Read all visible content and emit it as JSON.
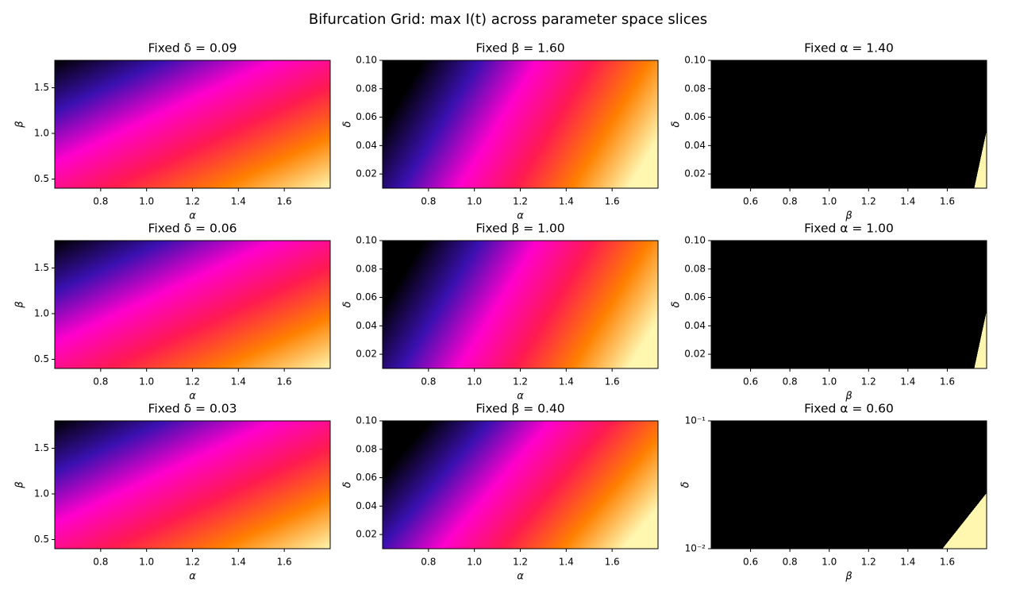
{
  "title": "Bifurcation Grid: max I(t) across parameter space slices",
  "chart_data": [
    {
      "type": "heatmap",
      "title": "Fixed δ = 0.09",
      "xlabel": "α",
      "ylabel": "β",
      "xlim": [
        0.6,
        1.8
      ],
      "ylim": [
        0.4,
        1.8
      ],
      "xticks": [
        0.8,
        {
          "value": 1,
          "label": "1.0"
        },
        1.2,
        1.4,
        1.6
      ],
      "yticks": [
        0.5,
        {
          "value": 1,
          "label": "1.0"
        },
        1.5
      ],
      "colors": [
        "#000000",
        "#3a10b0",
        "#ff00cc",
        "#ff1a50",
        "#ff8000",
        "#fff6b0"
      ]
    },
    {
      "type": "heatmap",
      "title": "Fixed β = 1.60",
      "xlabel": "α",
      "ylabel": "δ",
      "xlim": [
        0.6,
        1.8
      ],
      "ylim": [
        0.01,
        0.1
      ],
      "xticks": [
        0.8,
        {
          "value": 1,
          "label": "1.0"
        },
        1.2,
        1.4,
        1.6
      ],
      "yticks": [
        0.02,
        0.04,
        0.06,
        0.08,
        {
          "value": 0.1,
          "label": "0.10"
        }
      ],
      "colors": [
        "#000000",
        "#3a10b0",
        "#ff00cc",
        "#ff1a50",
        "#ff8000",
        "#fff6b0"
      ]
    },
    {
      "type": "heatmap",
      "title": "Fixed α = 1.40",
      "xlabel": "β",
      "ylabel": "δ",
      "xlim": [
        0.4,
        1.8
      ],
      "ylim": [
        0.01,
        0.1
      ],
      "xticks": [
        0.6,
        0.8,
        {
          "value": 1,
          "label": "1.0"
        },
        1.2,
        1.4,
        1.6
      ],
      "yticks": [
        0.02,
        0.04,
        0.06,
        0.08,
        {
          "value": 0.1,
          "label": "0.10"
        }
      ],
      "colors": [
        "#000000",
        "#3a10b0",
        "#ff00cc",
        "#ff1a50",
        "#ff8000",
        "#fff6b0"
      ]
    },
    {
      "type": "heatmap",
      "title": "Fixed δ = 0.06",
      "xlabel": "α",
      "ylabel": "β",
      "xlim": [
        0.6,
        1.8
      ],
      "ylim": [
        0.4,
        1.8
      ],
      "xticks": [
        0.8,
        {
          "value": 1,
          "label": "1.0"
        },
        1.2,
        1.4,
        1.6
      ],
      "yticks": [
        0.5,
        {
          "value": 1,
          "label": "1.0"
        },
        1.5
      ],
      "colors": [
        "#000000",
        "#3a10b0",
        "#ff00cc",
        "#ff1a50",
        "#ff8000",
        "#fff6b0"
      ]
    },
    {
      "type": "heatmap",
      "title": "Fixed β = 1.00",
      "xlabel": "α",
      "ylabel": "δ",
      "xlim": [
        0.6,
        1.8
      ],
      "ylim": [
        0.01,
        0.1
      ],
      "xticks": [
        0.8,
        {
          "value": 1,
          "label": "1.0"
        },
        1.2,
        1.4,
        1.6
      ],
      "yticks": [
        0.02,
        0.04,
        0.06,
        0.08,
        {
          "value": 0.1,
          "label": "0.10"
        }
      ],
      "colors": [
        "#000000",
        "#3a10b0",
        "#ff00cc",
        "#ff1a50",
        "#ff8000",
        "#fff6b0"
      ]
    },
    {
      "type": "heatmap",
      "title": "Fixed α = 1.00",
      "xlabel": "β",
      "ylabel": "δ",
      "xlim": [
        0.4,
        1.8
      ],
      "ylim": [
        0.01,
        0.1
      ],
      "xticks": [
        0.6,
        0.8,
        {
          "value": 1,
          "label": "1.0"
        },
        1.2,
        1.4,
        1.6
      ],
      "yticks": [
        0.02,
        0.04,
        0.06,
        0.08,
        {
          "value": 0.1,
          "label": "0.10"
        }
      ],
      "colors": [
        "#000000",
        "#3a10b0",
        "#ff00cc",
        "#ff1a50",
        "#ff8000",
        "#fff6b0"
      ]
    },
    {
      "type": "heatmap",
      "title": "Fixed δ = 0.03",
      "xlabel": "α",
      "ylabel": "β",
      "xlim": [
        0.6,
        1.8
      ],
      "ylim": [
        0.4,
        1.8
      ],
      "xticks": [
        0.8,
        {
          "value": 1,
          "label": "1.0"
        },
        1.2,
        1.4,
        1.6
      ],
      "yticks": [
        0.5,
        {
          "value": 1,
          "label": "1.0"
        },
        1.5
      ],
      "colors": [
        "#000000",
        "#3a10b0",
        "#ff00cc",
        "#ff1a50",
        "#ff8000",
        "#fff6b0"
      ]
    },
    {
      "type": "heatmap",
      "title": "Fixed β = 0.40",
      "xlabel": "α",
      "ylabel": "δ",
      "xlim": [
        0.6,
        1.8
      ],
      "ylim": [
        0.01,
        0.1
      ],
      "xticks": [
        0.8,
        {
          "value": 1,
          "label": "1.0"
        },
        1.2,
        1.4,
        1.6
      ],
      "yticks": [
        0.02,
        0.04,
        0.06,
        0.08,
        {
          "value": 0.1,
          "label": "0.10"
        }
      ],
      "colors": [
        "#000000",
        "#3a10b0",
        "#ff00cc",
        "#ff1a50",
        "#ff8000",
        "#fff6b0"
      ]
    },
    {
      "type": "heatmap",
      "title": "Fixed α = 0.60",
      "xlabel": "β",
      "ylabel": "δ",
      "xlim": [
        0.4,
        1.8
      ],
      "ylim": [
        0.01,
        0.1
      ],
      "yscale": "log",
      "xticks": [
        0.6,
        0.8,
        {
          "value": 1,
          "label": "1.0"
        },
        1.2,
        1.4,
        1.6
      ],
      "yticks": [
        {
          "value": 0.01,
          "label": "10⁻²"
        },
        {
          "value": 0.1,
          "label": "10⁻¹"
        }
      ],
      "colors": [
        "#000000",
        "#3a10b0",
        "#ff00cc",
        "#ff1a50",
        "#ff8000",
        "#fff6b0"
      ]
    }
  ]
}
